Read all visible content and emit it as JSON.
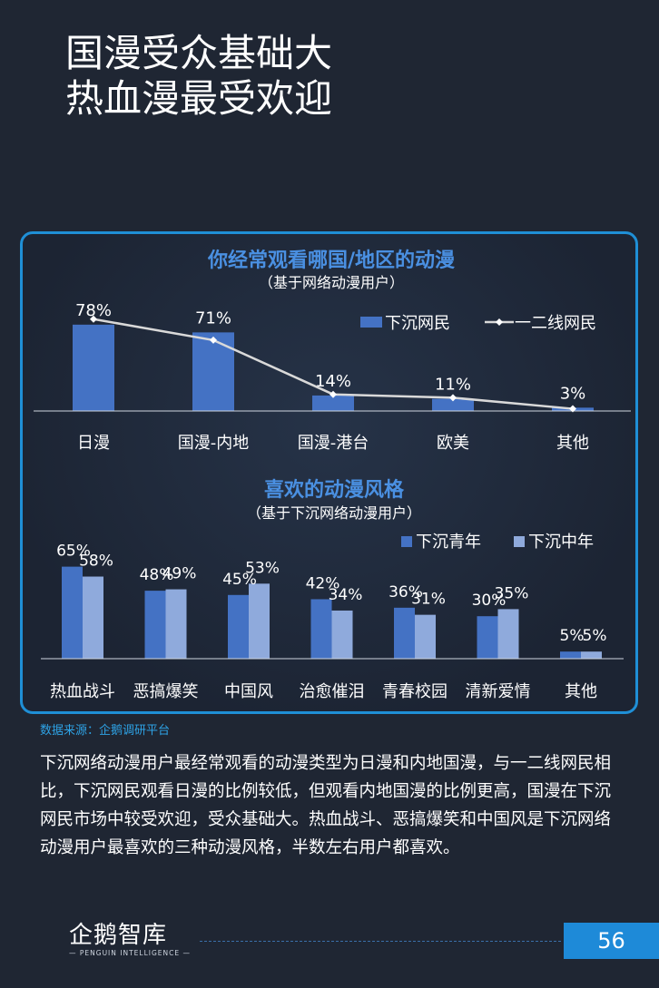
{
  "page": {
    "title_line1": "国漫受众基础大",
    "title_line2": "热血漫最受欢迎",
    "source": "数据来源：企鹅调研平台",
    "summary": "下沉网络动漫用户最经常观看的动漫类型为日漫和内地国漫，与一二线网民相比，下沉网民观看日漫的比例较低，但观看内地国漫的比例更高，国漫在下沉网民市场中较受欢迎，受众基础大。热血战斗、恶搞爆笑和中国风是下沉网络动漫用户最喜欢的三种动漫风格，半数左右用户都喜欢。",
    "page_number": "56",
    "logo_cn": "企鹅智库",
    "logo_en": "— PENGUIN  INTELLIGENCE —"
  },
  "colors": {
    "background": "#1f2633",
    "accent_blue": "#4472c4",
    "light_blue": "#8faadc",
    "title_blue": "#4a90e2",
    "frame_blue": "#1f8fd6",
    "line_white": "#d9d9d9"
  },
  "chart_data": [
    {
      "type": "bar",
      "title": "你经常观看哪国/地区的动漫",
      "subtitle": "（基于网络动漫用户）",
      "categories": [
        "日漫",
        "国漫-内地",
        "国漫-港台",
        "欧美",
        "其他"
      ],
      "series": [
        {
          "name": "下沉网民",
          "type": "bar",
          "values": [
            78,
            71,
            14,
            11,
            3
          ],
          "labels": [
            "78%",
            "71%",
            "14%",
            "11%",
            "3%"
          ]
        },
        {
          "name": "一二线网民",
          "type": "line",
          "values": [
            83,
            64,
            15,
            12,
            2
          ]
        }
      ],
      "ylim": [
        0,
        100
      ],
      "legend": "top-right",
      "grid": false
    },
    {
      "type": "bar",
      "title": "喜欢的动漫风格",
      "subtitle": "（基于下沉网络动漫用户）",
      "categories": [
        "热血战斗",
        "恶搞爆笑",
        "中国风",
        "治愈催泪",
        "青春校园",
        "清新爱情",
        "其他"
      ],
      "series": [
        {
          "name": "下沉青年",
          "values": [
            65,
            48,
            45,
            42,
            36,
            30,
            5
          ],
          "labels": [
            "65%",
            "48%",
            "45%",
            "42%",
            "36%",
            "30%",
            "5%"
          ]
        },
        {
          "name": "下沉中年",
          "values": [
            58,
            49,
            53,
            34,
            31,
            35,
            5
          ],
          "labels": [
            "58%",
            "49%",
            "53%",
            "34%",
            "31%",
            "35%",
            "5%"
          ]
        }
      ],
      "ylim": [
        0,
        100
      ],
      "legend": "top-right",
      "grid": false
    }
  ]
}
